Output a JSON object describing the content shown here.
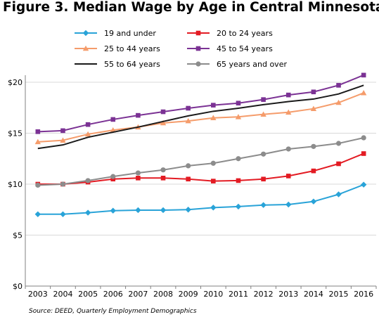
{
  "title": "Figure 3. Median Wage by Age in Central Minnesota",
  "source": "Source: DEED, Quarterly Employment Demographics",
  "chart_data": {
    "type": "line",
    "title": "Figure 3. Median Wage by Age in Central Minnesota",
    "x": [
      2003,
      2004,
      2005,
      2006,
      2007,
      2008,
      2009,
      2010,
      2011,
      2012,
      2013,
      2014,
      2015,
      2016
    ],
    "x_tick_labels": [
      "2003",
      "2004",
      "2005",
      "2006",
      "2007",
      "2008",
      "2009",
      "2010",
      "2011",
      "2012",
      "2013",
      "2014",
      "2015",
      "2016"
    ],
    "ylim": [
      0,
      20
    ],
    "y_ticks": [
      0,
      5,
      10,
      15,
      20
    ],
    "y_tick_labels": [
      "$0",
      "$5",
      "$10",
      "$15",
      "$20"
    ],
    "grid": "horizontal",
    "legend_position": "top",
    "series": [
      {
        "name": "19 and under",
        "color": "#29a3d8",
        "marker": "diamond",
        "values": [
          7.05,
          7.05,
          7.2,
          7.4,
          7.45,
          7.45,
          7.5,
          7.7,
          7.8,
          7.95,
          8.0,
          8.3,
          9.0,
          9.95
        ]
      },
      {
        "name": "20 to 24 years",
        "color": "#e31b23",
        "marker": "square",
        "values": [
          10.0,
          10.0,
          10.2,
          10.5,
          10.6,
          10.6,
          10.5,
          10.3,
          10.35,
          10.5,
          10.8,
          11.3,
          12.0,
          13.0
        ]
      },
      {
        "name": "25 to 44 years",
        "color": "#f59c6b",
        "marker": "triangle",
        "values": [
          14.15,
          14.3,
          14.9,
          15.3,
          15.6,
          16.0,
          16.2,
          16.5,
          16.6,
          16.85,
          17.05,
          17.4,
          18.0,
          18.95
        ]
      },
      {
        "name": "45 to 54 years",
        "color": "#7b3294",
        "marker": "square",
        "values": [
          15.15,
          15.25,
          15.85,
          16.35,
          16.75,
          17.1,
          17.45,
          17.75,
          17.95,
          18.3,
          18.75,
          19.05,
          19.7,
          20.7
        ]
      },
      {
        "name": "55 to 64 years",
        "color": "#1a1a1a",
        "marker": "none",
        "values": [
          13.5,
          13.85,
          14.6,
          15.1,
          15.6,
          16.15,
          16.7,
          17.15,
          17.45,
          17.8,
          18.1,
          18.35,
          18.85,
          19.7
        ]
      },
      {
        "name": "65 years and over",
        "color": "#8c8c8c",
        "marker": "circle",
        "values": [
          9.9,
          10.0,
          10.35,
          10.75,
          11.1,
          11.4,
          11.8,
          12.05,
          12.5,
          12.95,
          13.45,
          13.7,
          14.0,
          14.55
        ]
      }
    ]
  }
}
